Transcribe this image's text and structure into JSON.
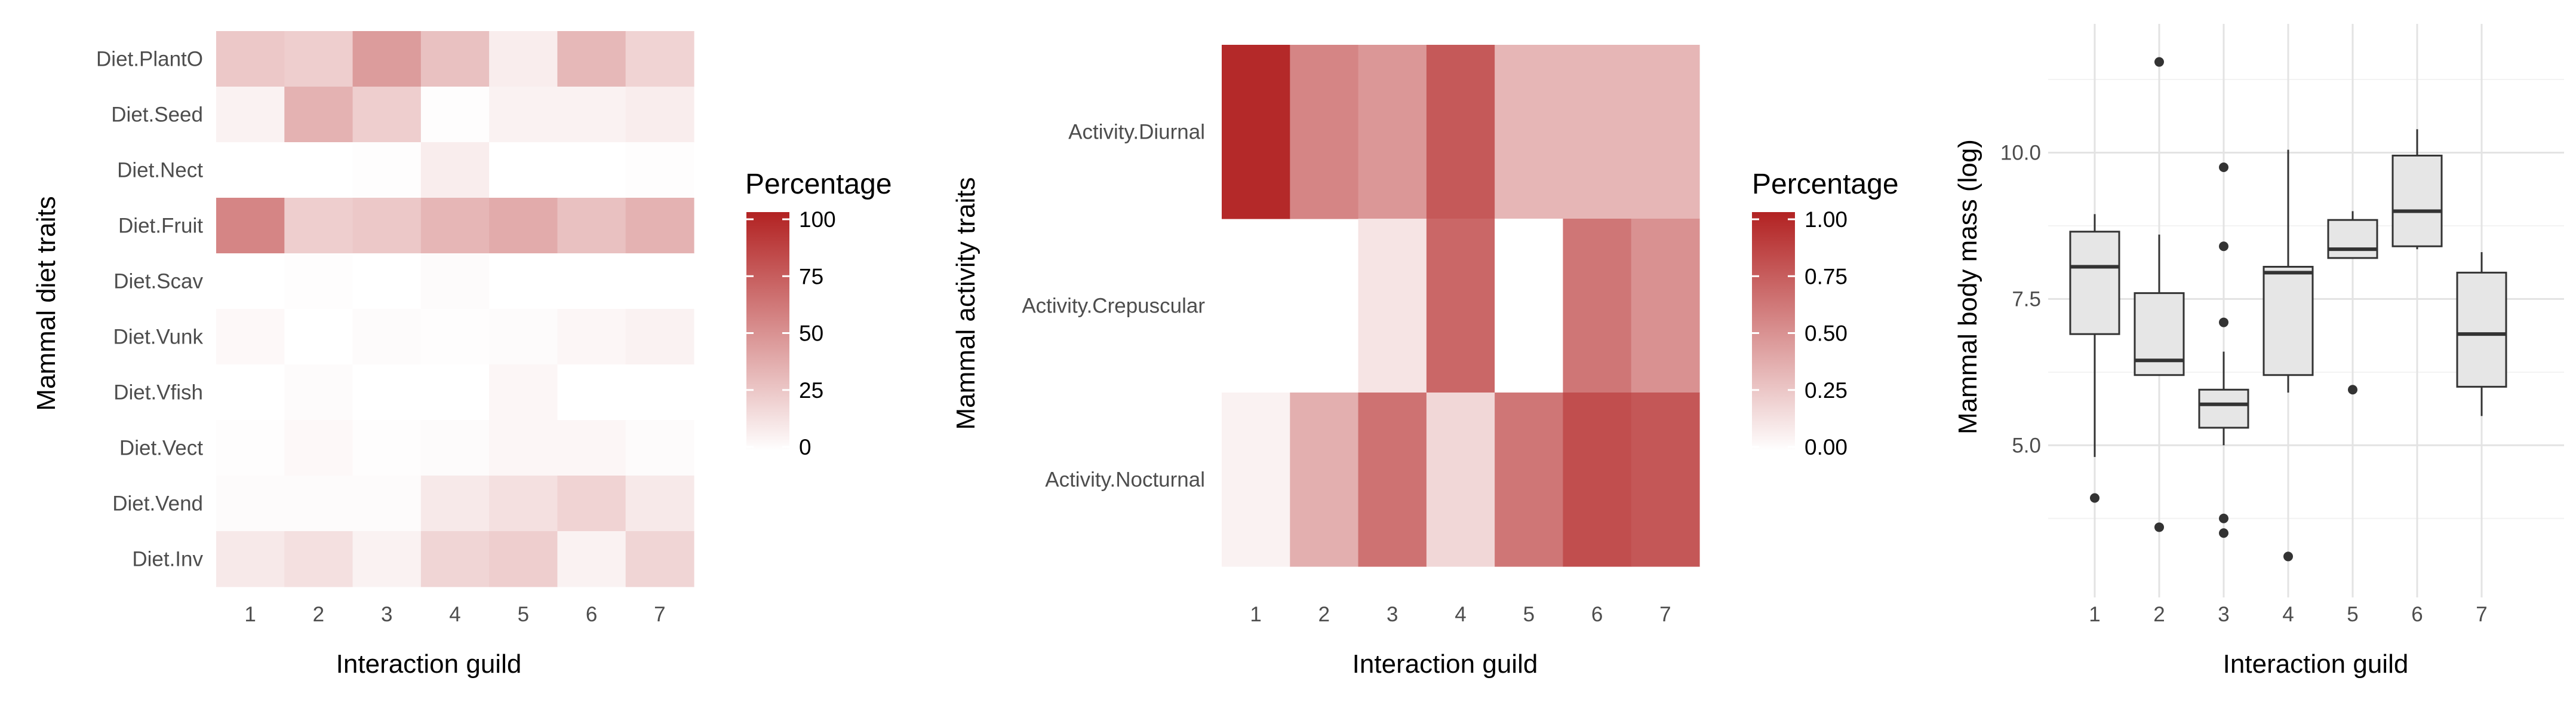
{
  "colors": {
    "low": "#ffffff",
    "high": "#b22222",
    "box_fill": "#e6e6e6",
    "box_line": "#333333",
    "grid": "#ebebeb"
  },
  "chart_data": [
    {
      "type": "heatmap",
      "xlabel": "Interaction guild",
      "ylabel": "Mammal diet traits",
      "x_categories": [
        "1",
        "2",
        "3",
        "4",
        "5",
        "6",
        "7"
      ],
      "y_categories": [
        "Diet.PlantO",
        "Diet.Seed",
        "Diet.Nect",
        "Diet.Fruit",
        "Diet.Scav",
        "Diet.Vunk",
        "Diet.Vfish",
        "Diet.Vect",
        "Diet.Vend",
        "Diet.Inv"
      ],
      "values": [
        [
          25,
          22,
          45,
          28,
          8,
          32,
          20
        ],
        [
          6,
          35,
          22,
          1,
          6,
          6,
          8
        ],
        [
          0,
          0,
          1,
          8,
          0,
          0,
          1
        ],
        [
          55,
          22,
          25,
          33,
          38,
          28,
          35
        ],
        [
          0,
          1,
          0,
          2,
          0,
          0,
          0
        ],
        [
          3,
          0,
          2,
          1,
          2,
          4,
          6
        ],
        [
          0,
          2,
          0,
          0,
          4,
          0,
          0
        ],
        [
          1,
          3,
          1,
          2,
          4,
          4,
          2
        ],
        [
          2,
          2,
          2,
          10,
          14,
          20,
          10
        ],
        [
          10,
          14,
          6,
          19,
          22,
          6,
          19
        ]
      ],
      "legend": {
        "title": "Percentage",
        "ticks": [
          0,
          25,
          50,
          75,
          100
        ],
        "range": [
          0,
          100
        ]
      }
    },
    {
      "type": "heatmap",
      "xlabel": "Interaction guild",
      "ylabel": "Mammal activity traits",
      "x_categories": [
        "1",
        "2",
        "3",
        "4",
        "5",
        "6",
        "7"
      ],
      "y_categories": [
        "Activity.Diurnal",
        "Activity.Crepuscular",
        "Activity.Nocturnal"
      ],
      "values": [
        [
          0.97,
          0.55,
          0.47,
          0.75,
          0.33,
          0.33,
          0.33
        ],
        [
          null,
          null,
          0.12,
          0.69,
          0.0,
          0.62,
          0.5
        ],
        [
          0.06,
          0.36,
          0.64,
          0.18,
          0.62,
          0.8,
          0.76
        ]
      ],
      "legend": {
        "title": "Percentage",
        "ticks": [
          "0.00",
          "0.25",
          "0.50",
          "0.75",
          "1.00"
        ],
        "range": [
          0,
          1
        ]
      }
    },
    {
      "type": "box",
      "xlabel": "Interaction guild",
      "ylabel": "Mammal body mass (log)",
      "categories": [
        "1",
        "2",
        "3",
        "4",
        "5",
        "6",
        "7"
      ],
      "y_ticks": [
        "5.0",
        "7.5",
        "10.0"
      ],
      "ylim": [
        2.4,
        12.2
      ],
      "boxes": [
        {
          "min": 4.8,
          "q1": 6.9,
          "median": 8.05,
          "q3": 8.65,
          "max": 8.95,
          "outliers": [
            4.1
          ]
        },
        {
          "min": 6.2,
          "q1": 6.2,
          "median": 6.45,
          "q3": 7.6,
          "max": 8.6,
          "outliers": [
            11.55,
            3.6
          ]
        },
        {
          "min": 5.0,
          "q1": 5.3,
          "median": 5.7,
          "q3": 5.95,
          "max": 6.6,
          "outliers": [
            9.75,
            8.4,
            7.1,
            3.75,
            3.5
          ]
        },
        {
          "min": 5.9,
          "q1": 6.2,
          "median": 7.95,
          "q3": 8.05,
          "max": 10.05,
          "outliers": [
            3.1
          ]
        },
        {
          "min": 8.2,
          "q1": 8.2,
          "median": 8.35,
          "q3": 8.85,
          "max": 9.0,
          "outliers": [
            5.95
          ]
        },
        {
          "min": 8.35,
          "q1": 8.4,
          "median": 9.0,
          "q3": 9.95,
          "max": 10.4,
          "outliers": []
        },
        {
          "min": 5.5,
          "q1": 6.0,
          "median": 6.9,
          "q3": 7.95,
          "max": 8.3,
          "outliers": []
        }
      ]
    }
  ]
}
